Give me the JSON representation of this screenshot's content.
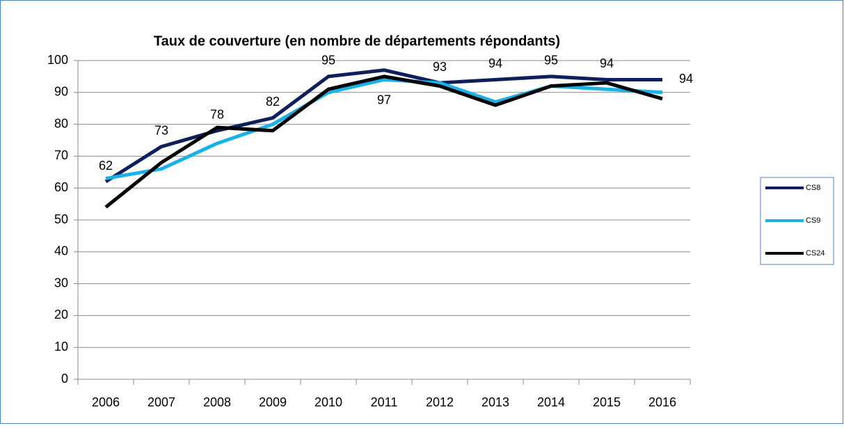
{
  "chart_data": {
    "type": "line",
    "title": "Taux de couverture (en nombre de départements répondants)",
    "categories": [
      "2006",
      "2007",
      "2008",
      "2009",
      "2010",
      "2011",
      "2012",
      "2013",
      "2014",
      "2015",
      "2016"
    ],
    "series": [
      {
        "name": "CS8",
        "color": "#0f1f5c",
        "values": [
          62,
          73,
          78,
          82,
          95,
          97,
          93,
          94,
          95,
          94,
          94
        ],
        "data_labels": true
      },
      {
        "name": "CS9",
        "color": "#1ab0e8",
        "values": [
          63,
          66,
          74,
          80,
          90,
          94,
          93,
          87,
          92,
          91,
          90
        ],
        "data_labels": false
      },
      {
        "name": "CS24",
        "color": "#000000",
        "values": [
          54,
          68,
          79,
          78,
          91,
          95,
          92,
          86,
          92,
          93,
          88
        ],
        "data_labels": false
      }
    ],
    "ylim": [
      0,
      100
    ],
    "yticks": [
      0,
      10,
      20,
      30,
      40,
      50,
      60,
      70,
      80,
      90,
      100
    ],
    "grid": true,
    "legend": "right"
  }
}
